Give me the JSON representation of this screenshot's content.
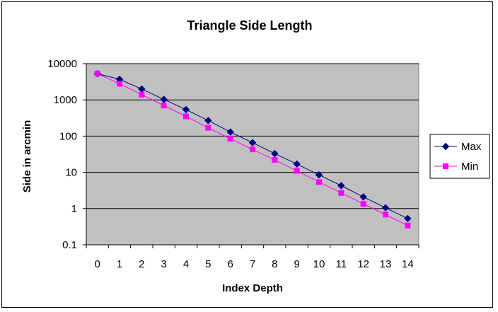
{
  "chart_data": {
    "type": "line",
    "title": "Triangle Side Length",
    "xlabel": "Index Depth",
    "ylabel": "Side in arcmin",
    "yscale": "log",
    "ylim": [
      0.1,
      10000
    ],
    "grid": true,
    "legend_position": "right",
    "background_color": "#C0C0C0",
    "x": [
      0,
      1,
      2,
      3,
      4,
      5,
      6,
      7,
      8,
      9,
      10,
      11,
      12,
      13,
      14
    ],
    "x_tick_labels": [
      "0",
      "1",
      "2",
      "3",
      "4",
      "5",
      "6",
      "7",
      "8",
      "9",
      "10",
      "11",
      "12",
      "13",
      "14"
    ],
    "y_tick_labels": [
      "0.1",
      "1",
      "10",
      "100",
      "1000",
      "10000"
    ],
    "y_tick_values": [
      0.1,
      1,
      10,
      100,
      1000,
      10000
    ],
    "series": [
      {
        "name": "Max",
        "color": "#000080",
        "marker": "diamond",
        "values": [
          5300,
          3700,
          2000,
          1030,
          540,
          270,
          130,
          66,
          33,
          17,
          8.5,
          4.3,
          2.1,
          1.05,
          0.53
        ]
      },
      {
        "name": "Min",
        "color": "#FF00FF",
        "marker": "square",
        "values": [
          5300,
          2800,
          1400,
          700,
          350,
          170,
          85,
          43,
          22,
          11,
          5.4,
          2.7,
          1.35,
          0.68,
          0.34
        ]
      }
    ]
  }
}
